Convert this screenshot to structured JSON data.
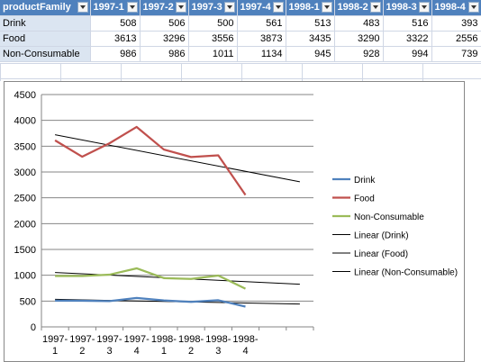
{
  "table": {
    "header": [
      "productFamily",
      "1997-1",
      "1997-2",
      "1997-3",
      "1997-4",
      "1998-1",
      "1998-2",
      "1998-3",
      "1998-4"
    ],
    "rows": [
      {
        "name": "Drink",
        "values": [
          "508",
          "506",
          "500",
          "561",
          "513",
          "483",
          "516",
          "393"
        ]
      },
      {
        "name": "Food",
        "values": [
          "3613",
          "3296",
          "3556",
          "3873",
          "3435",
          "3290",
          "3322",
          "2556"
        ]
      },
      {
        "name": "Non-Consumable",
        "values": [
          "986",
          "986",
          "1011",
          "1134",
          "945",
          "928",
          "994",
          "739"
        ]
      }
    ]
  },
  "chart_data": {
    "type": "line",
    "categories": [
      [
        "1997-",
        "1"
      ],
      [
        "1997-",
        "2"
      ],
      [
        "1997-",
        "3"
      ],
      [
        "1997-",
        "4"
      ],
      [
        "1998-",
        "1"
      ],
      [
        "1998-",
        "2"
      ],
      [
        "1998-",
        "3"
      ],
      [
        "1998-",
        "4"
      ]
    ],
    "ylim": [
      0,
      4500
    ],
    "ytick_step": 500,
    "yticks": [
      "0",
      "500",
      "1000",
      "1500",
      "2000",
      "2500",
      "3000",
      "3500",
      "4000",
      "4500"
    ],
    "grid": true,
    "legend_position": "right",
    "series": [
      {
        "name": "Drink",
        "color": "#4f81bd",
        "values": [
          508,
          506,
          500,
          561,
          513,
          483,
          516,
          393
        ]
      },
      {
        "name": "Food",
        "color": "#c0504d",
        "values": [
          3613,
          3296,
          3556,
          3873,
          3435,
          3290,
          3322,
          2556
        ]
      },
      {
        "name": "Non-Consumable",
        "color": "#9bbb59",
        "values": [
          986,
          986,
          1011,
          1134,
          945,
          928,
          994,
          739
        ]
      }
    ],
    "trendlines": [
      {
        "name": "Linear (Drink)",
        "color": "#000000",
        "of": 0
      },
      {
        "name": "Linear (Food)",
        "color": "#000000",
        "of": 1
      },
      {
        "name": "Linear (Non-Consumable)",
        "color": "#000000",
        "of": 2
      }
    ]
  }
}
